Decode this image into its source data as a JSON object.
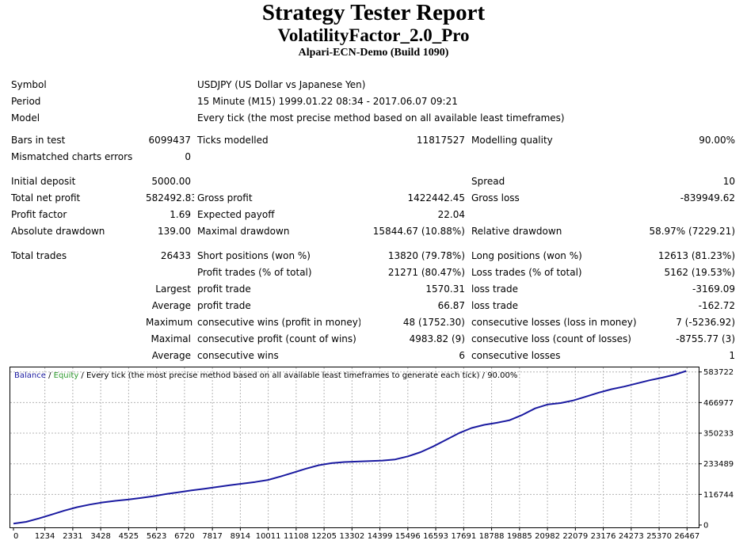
{
  "header": {
    "title": "Strategy Tester Report",
    "subtitle": "VolatilityFactor_2.0_Pro",
    "server": "Alpari-ECN-Demo (Build 1090)"
  },
  "info": {
    "symbol_label": "Symbol",
    "symbol_value": "USDJPY (US Dollar vs Japanese Yen)",
    "period_label": "Period",
    "period_value": "15 Minute (M15) 1999.01.22 08:34 - 2017.06.07 09:21",
    "model_label": "Model",
    "model_value": "Every tick (the most precise method based on all available least timeframes)"
  },
  "stats": {
    "bars_label": "Bars in test",
    "bars_value": "6099437",
    "ticks_label": "Ticks modelled",
    "ticks_value": "11817527",
    "quality_label": "Modelling quality",
    "quality_value": "90.00%",
    "mismatch_label": "Mismatched charts errors",
    "mismatch_value": "0",
    "deposit_label": "Initial deposit",
    "deposit_value": "5000.00",
    "spread_label": "Spread",
    "spread_value": "10",
    "netprofit_label": "Total net profit",
    "netprofit_value": "582492.83",
    "grossprofit_label": "Gross profit",
    "grossprofit_value": "1422442.45",
    "grossloss_label": "Gross loss",
    "grossloss_value": "-839949.62",
    "pf_label": "Profit factor",
    "pf_value": "1.69",
    "payoff_label": "Expected payoff",
    "payoff_value": "22.04",
    "absdd_label": "Absolute drawdown",
    "absdd_value": "139.00",
    "maxdd_label": "Maximal drawdown",
    "maxdd_value": "15844.67 (10.88%)",
    "reldd_label": "Relative drawdown",
    "reldd_value": "58.97% (7229.21)",
    "trades_label": "Total trades",
    "trades_value": "26433",
    "short_label": "Short positions (won %)",
    "short_value": "13820 (79.78%)",
    "long_label": "Long positions (won %)",
    "long_value": "12613 (81.23%)",
    "ptrades_label": "Profit trades (% of total)",
    "ptrades_value": "21271 (80.47%)",
    "ltrades_label": "Loss trades (% of total)",
    "ltrades_value": "5162 (19.53%)",
    "largest_label": "Largest",
    "largest_profit_label": "profit trade",
    "largest_profit_value": "1570.31",
    "largest_loss_label": "loss trade",
    "largest_loss_value": "-3169.09",
    "average_label": "Average",
    "average_profit_label": "profit trade",
    "average_profit_value": "66.87",
    "average_loss_label": "loss trade",
    "average_loss_value": "-162.72",
    "maximum_label": "Maximum",
    "max_wins_label": "consecutive wins (profit in money)",
    "max_wins_value": "48 (1752.30)",
    "max_losses_label": "consecutive losses (loss in money)",
    "max_losses_value": "7 (-5236.92)",
    "maximal_label": "Maximal",
    "maximal_profit_label": "consecutive profit (count of wins)",
    "maximal_profit_value": "4983.82 (9)",
    "maximal_loss_label": "consecutive loss (count of losses)",
    "maximal_loss_value": "-8755.77 (3)",
    "avg_consec_label": "Average",
    "avg_wins_label": "consecutive wins",
    "avg_wins_value": "6",
    "avg_losses_label": "consecutive losses",
    "avg_losses_value": "1"
  },
  "chart_data": {
    "type": "line",
    "legend": {
      "balance": "Balance",
      "sep1": " / ",
      "equity": "Equity",
      "rest": " / Every tick (the most precise method based on all available least timeframes to generate each tick) / 90.00%"
    },
    "colors": {
      "balance": "#1a1aa0",
      "equity": "#2e9a2e",
      "grid": "#b4b4b4"
    },
    "x_ticks": [
      "0",
      "1234",
      "2331",
      "3428",
      "4525",
      "5623",
      "6720",
      "7817",
      "8914",
      "10011",
      "11108",
      "12205",
      "13302",
      "14399",
      "15496",
      "16593",
      "17691",
      "18788",
      "19885",
      "20982",
      "22079",
      "23176",
      "24273",
      "25370",
      "26467"
    ],
    "y_ticks": [
      "583722",
      "466977",
      "350233",
      "233489",
      "116744",
      "0"
    ],
    "xlim": [
      0,
      26800
    ],
    "ylim": [
      0,
      595000
    ],
    "grid": true,
    "series": [
      {
        "name": "Balance",
        "x": [
          0,
          500,
          1000,
          1500,
          2000,
          2500,
          3000,
          3500,
          4000,
          4500,
          5000,
          5500,
          6000,
          6500,
          7000,
          7500,
          8000,
          8500,
          9000,
          9500,
          10000,
          10500,
          11000,
          11500,
          12000,
          12500,
          13000,
          13500,
          14000,
          14500,
          15000,
          15500,
          16000,
          16500,
          17000,
          17500,
          18000,
          18500,
          19000,
          19500,
          20000,
          20500,
          21000,
          21500,
          22000,
          22500,
          23000,
          23500,
          24000,
          24500,
          25000,
          25500,
          26000,
          26433
        ],
        "y": [
          5000,
          12000,
          25000,
          40000,
          55000,
          68000,
          78000,
          86000,
          92000,
          97000,
          103000,
          110000,
          118000,
          125000,
          132000,
          138000,
          145000,
          152000,
          158000,
          164000,
          172000,
          185000,
          200000,
          215000,
          228000,
          236000,
          240000,
          242000,
          244000,
          246000,
          250000,
          262000,
          278000,
          300000,
          325000,
          350000,
          370000,
          382000,
          390000,
          400000,
          420000,
          445000,
          460000,
          465000,
          475000,
          490000,
          505000,
          518000,
          528000,
          540000,
          552000,
          562000,
          574000,
          587492
        ]
      }
    ]
  }
}
